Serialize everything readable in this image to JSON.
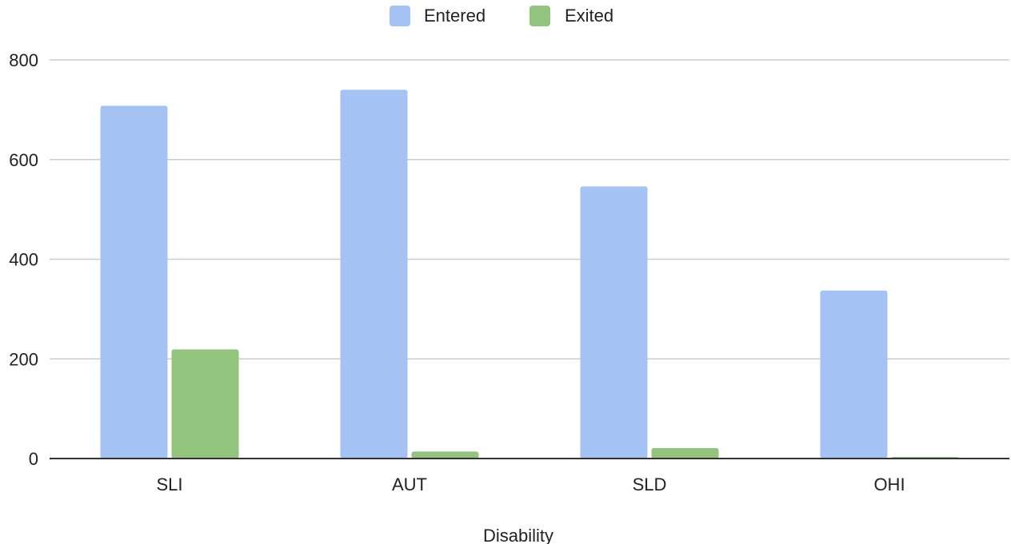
{
  "chart_data": {
    "type": "bar",
    "categories": [
      "SLI",
      "AUT",
      "SLD",
      "OHI"
    ],
    "series": [
      {
        "name": "Entered",
        "values": [
          708,
          740,
          546,
          337
        ],
        "color": "#a4c2f4"
      },
      {
        "name": "Exited",
        "values": [
          219,
          14,
          21,
          3
        ],
        "color": "#93c47d"
      }
    ],
    "title": "",
    "xlabel": "Disability",
    "ylabel": "",
    "ylim": [
      0,
      800
    ],
    "yticks": [
      0,
      200,
      400,
      600,
      800
    ],
    "grid": true,
    "legend_position": "top"
  }
}
